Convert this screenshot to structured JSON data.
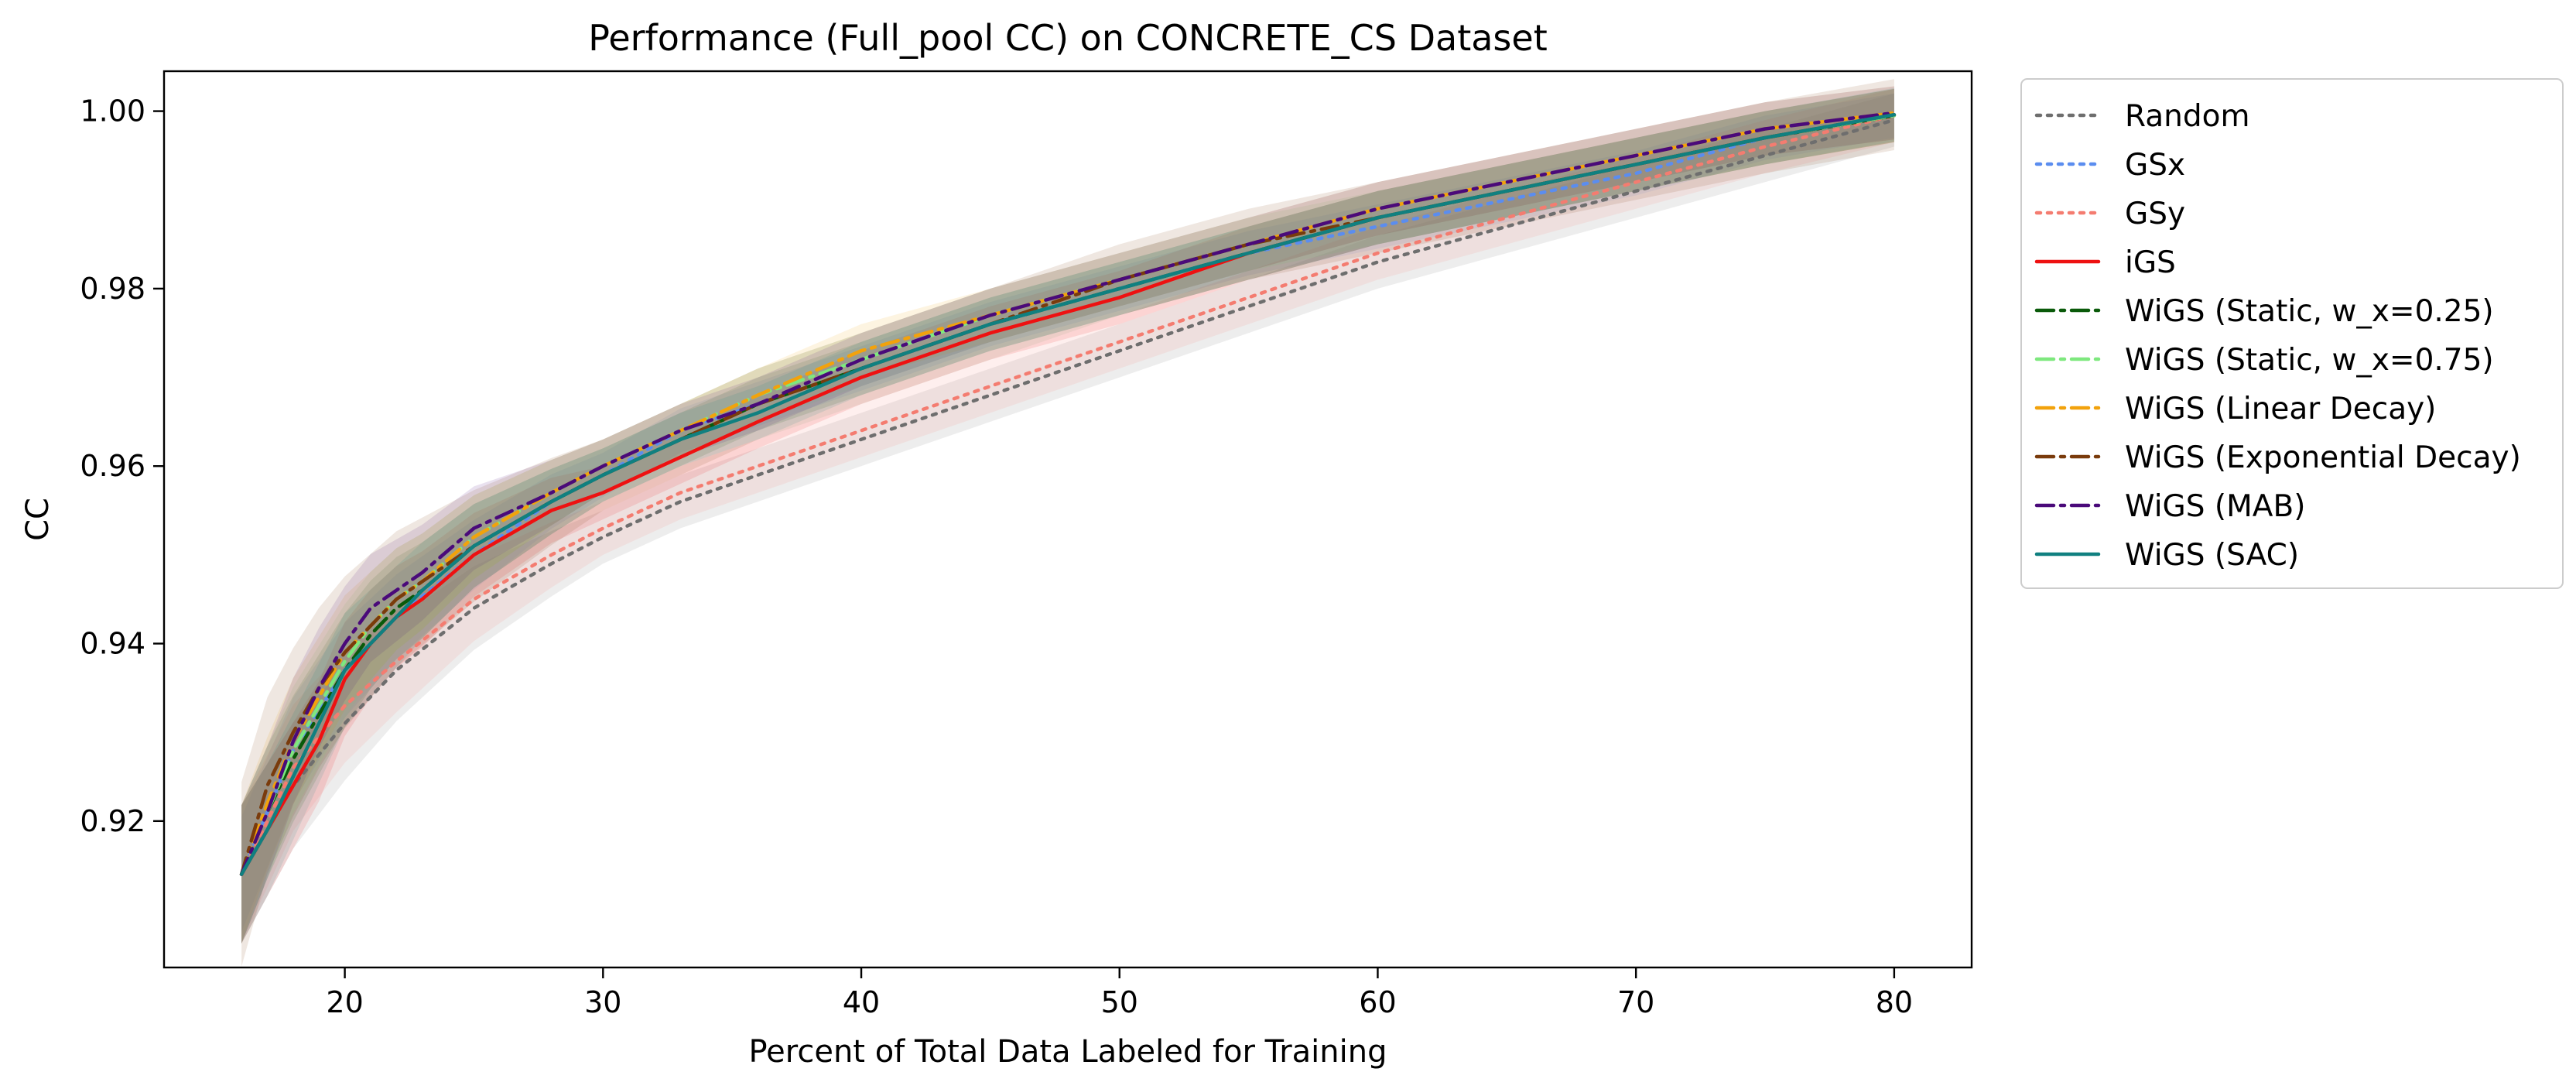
{
  "chart_data": {
    "type": "line",
    "title": "Performance (Full_pool CC) on CONCRETE_CS Dataset",
    "xlabel": "Percent of Total Data Labeled for Training",
    "ylabel": "CC",
    "xlim": [
      13,
      83
    ],
    "ylim": [
      0.9035,
      1.0045
    ],
    "xticks": [
      20,
      30,
      40,
      50,
      60,
      70,
      80
    ],
    "yticks": [
      0.92,
      0.94,
      0.96,
      0.98,
      1.0
    ],
    "xtick_labels": [
      "20",
      "30",
      "40",
      "50",
      "60",
      "70",
      "80"
    ],
    "ytick_labels": [
      "0.92",
      "0.94",
      "0.96",
      "0.98",
      "1.00"
    ],
    "grid": false,
    "legend_position": "outside-right-top",
    "series": [
      {
        "name": "Random",
        "color": "#6e6e6e",
        "style": "dotted",
        "x": [
          16,
          18,
          20,
          22,
          25,
          28,
          30,
          33,
          36,
          40,
          45,
          50,
          55,
          60,
          65,
          70,
          75,
          80
        ],
        "y": [
          0.914,
          0.924,
          0.931,
          0.937,
          0.944,
          0.949,
          0.952,
          0.956,
          0.959,
          0.963,
          0.968,
          0.973,
          0.978,
          0.983,
          0.987,
          0.991,
          0.995,
          0.999
        ],
        "band": 0.003
      },
      {
        "name": "GSx",
        "color": "#5b8def",
        "style": "dotted",
        "x": [
          16,
          18,
          20,
          22,
          25,
          28,
          30,
          33,
          36,
          40,
          45,
          50,
          55,
          60,
          65,
          70,
          75,
          80
        ],
        "y": [
          0.914,
          0.928,
          0.937,
          0.943,
          0.95,
          0.956,
          0.959,
          0.964,
          0.967,
          0.971,
          0.976,
          0.98,
          0.984,
          0.987,
          0.99,
          0.993,
          0.997,
          0.9995
        ],
        "band": 0.0025
      },
      {
        "name": "GSy",
        "color": "#f47c70",
        "style": "dotted",
        "x": [
          16,
          18,
          20,
          22,
          25,
          28,
          30,
          33,
          36,
          40,
          45,
          50,
          55,
          60,
          65,
          70,
          75,
          80
        ],
        "y": [
          0.914,
          0.926,
          0.933,
          0.938,
          0.945,
          0.95,
          0.953,
          0.957,
          0.96,
          0.964,
          0.969,
          0.974,
          0.979,
          0.984,
          0.988,
          0.992,
          0.996,
          0.9995
        ],
        "band": 0.003
      },
      {
        "name": "iGS",
        "color": "#ee1111",
        "style": "solid",
        "x": [
          16,
          17,
          18,
          19,
          20,
          21,
          22,
          23,
          25,
          28,
          30,
          33,
          36,
          40,
          45,
          50,
          55,
          60,
          65,
          70,
          75,
          80
        ],
        "y": [
          0.914,
          0.919,
          0.924,
          0.929,
          0.936,
          0.94,
          0.943,
          0.945,
          0.95,
          0.955,
          0.957,
          0.961,
          0.965,
          0.97,
          0.975,
          0.979,
          0.984,
          0.988,
          0.991,
          0.994,
          0.997,
          0.9995
        ],
        "band": 0.003
      },
      {
        "name": "WiGS (Static, w_x=0.25)",
        "color": "#0a5a0a",
        "style": "dashdot",
        "x": [
          16,
          17,
          18,
          19,
          20,
          21,
          22,
          23,
          25,
          28,
          30,
          33,
          36,
          40,
          45,
          50,
          55,
          60,
          65,
          70,
          75,
          80
        ],
        "y": [
          0.914,
          0.921,
          0.927,
          0.932,
          0.937,
          0.941,
          0.944,
          0.946,
          0.951,
          0.956,
          0.959,
          0.963,
          0.967,
          0.971,
          0.976,
          0.98,
          0.984,
          0.988,
          0.991,
          0.994,
          0.997,
          0.9995
        ],
        "band": 0.003
      },
      {
        "name": "WiGS (Static, w_x=0.75)",
        "color": "#7ee87e",
        "style": "dashdot",
        "x": [
          16,
          17,
          18,
          19,
          20,
          21,
          22,
          23,
          25,
          28,
          30,
          33,
          36,
          40,
          45,
          50,
          55,
          60,
          65,
          70,
          75,
          80
        ],
        "y": [
          0.914,
          0.921,
          0.928,
          0.933,
          0.938,
          0.942,
          0.945,
          0.947,
          0.952,
          0.957,
          0.96,
          0.964,
          0.968,
          0.972,
          0.977,
          0.981,
          0.985,
          0.988,
          0.991,
          0.994,
          0.997,
          0.9995
        ],
        "band": 0.003
      },
      {
        "name": "WiGS (Linear Decay)",
        "color": "#f2a20c",
        "style": "dashdot",
        "x": [
          16,
          17,
          18,
          19,
          20,
          21,
          22,
          23,
          25,
          28,
          30,
          33,
          36,
          40,
          45,
          50,
          55,
          60,
          65,
          70,
          75,
          80
        ],
        "y": [
          0.914,
          0.922,
          0.929,
          0.934,
          0.939,
          0.942,
          0.945,
          0.947,
          0.952,
          0.957,
          0.96,
          0.964,
          0.968,
          0.973,
          0.977,
          0.981,
          0.985,
          0.989,
          0.992,
          0.995,
          0.998,
          0.9998
        ],
        "band": 0.003
      },
      {
        "name": "WiGS (Exponential Decay)",
        "color": "#7a3b0c",
        "style": "dashdot",
        "x": [
          16,
          17,
          18,
          19,
          20,
          21,
          22,
          23,
          25,
          28,
          30,
          33,
          36,
          40,
          45,
          50,
          55,
          60,
          65,
          70,
          75,
          80
        ],
        "y": [
          0.914,
          0.924,
          0.93,
          0.935,
          0.939,
          0.942,
          0.945,
          0.947,
          0.951,
          0.956,
          0.959,
          0.963,
          0.967,
          0.971,
          0.976,
          0.981,
          0.985,
          0.988,
          0.991,
          0.994,
          0.997,
          0.9996
        ],
        "band": 0.004
      },
      {
        "name": "WiGS (MAB)",
        "color": "#4a0a7a",
        "style": "dashdot",
        "x": [
          16,
          17,
          18,
          19,
          20,
          21,
          22,
          23,
          25,
          28,
          30,
          33,
          36,
          40,
          45,
          50,
          55,
          60,
          65,
          70,
          75,
          80
        ],
        "y": [
          0.914,
          0.921,
          0.929,
          0.935,
          0.94,
          0.944,
          0.946,
          0.948,
          0.953,
          0.957,
          0.96,
          0.964,
          0.967,
          0.972,
          0.977,
          0.981,
          0.985,
          0.989,
          0.992,
          0.995,
          0.998,
          0.9998
        ],
        "band": 0.003
      },
      {
        "name": "WiGS (SAC)",
        "color": "#108080",
        "style": "solid",
        "x": [
          16,
          17,
          18,
          19,
          20,
          21,
          22,
          23,
          25,
          28,
          30,
          33,
          36,
          40,
          45,
          50,
          55,
          60,
          65,
          70,
          75,
          80
        ],
        "y": [
          0.914,
          0.919,
          0.925,
          0.931,
          0.937,
          0.94,
          0.943,
          0.946,
          0.951,
          0.956,
          0.959,
          0.963,
          0.966,
          0.971,
          0.976,
          0.98,
          0.984,
          0.988,
          0.991,
          0.994,
          0.997,
          0.9996
        ],
        "band": 0.003
      }
    ]
  }
}
